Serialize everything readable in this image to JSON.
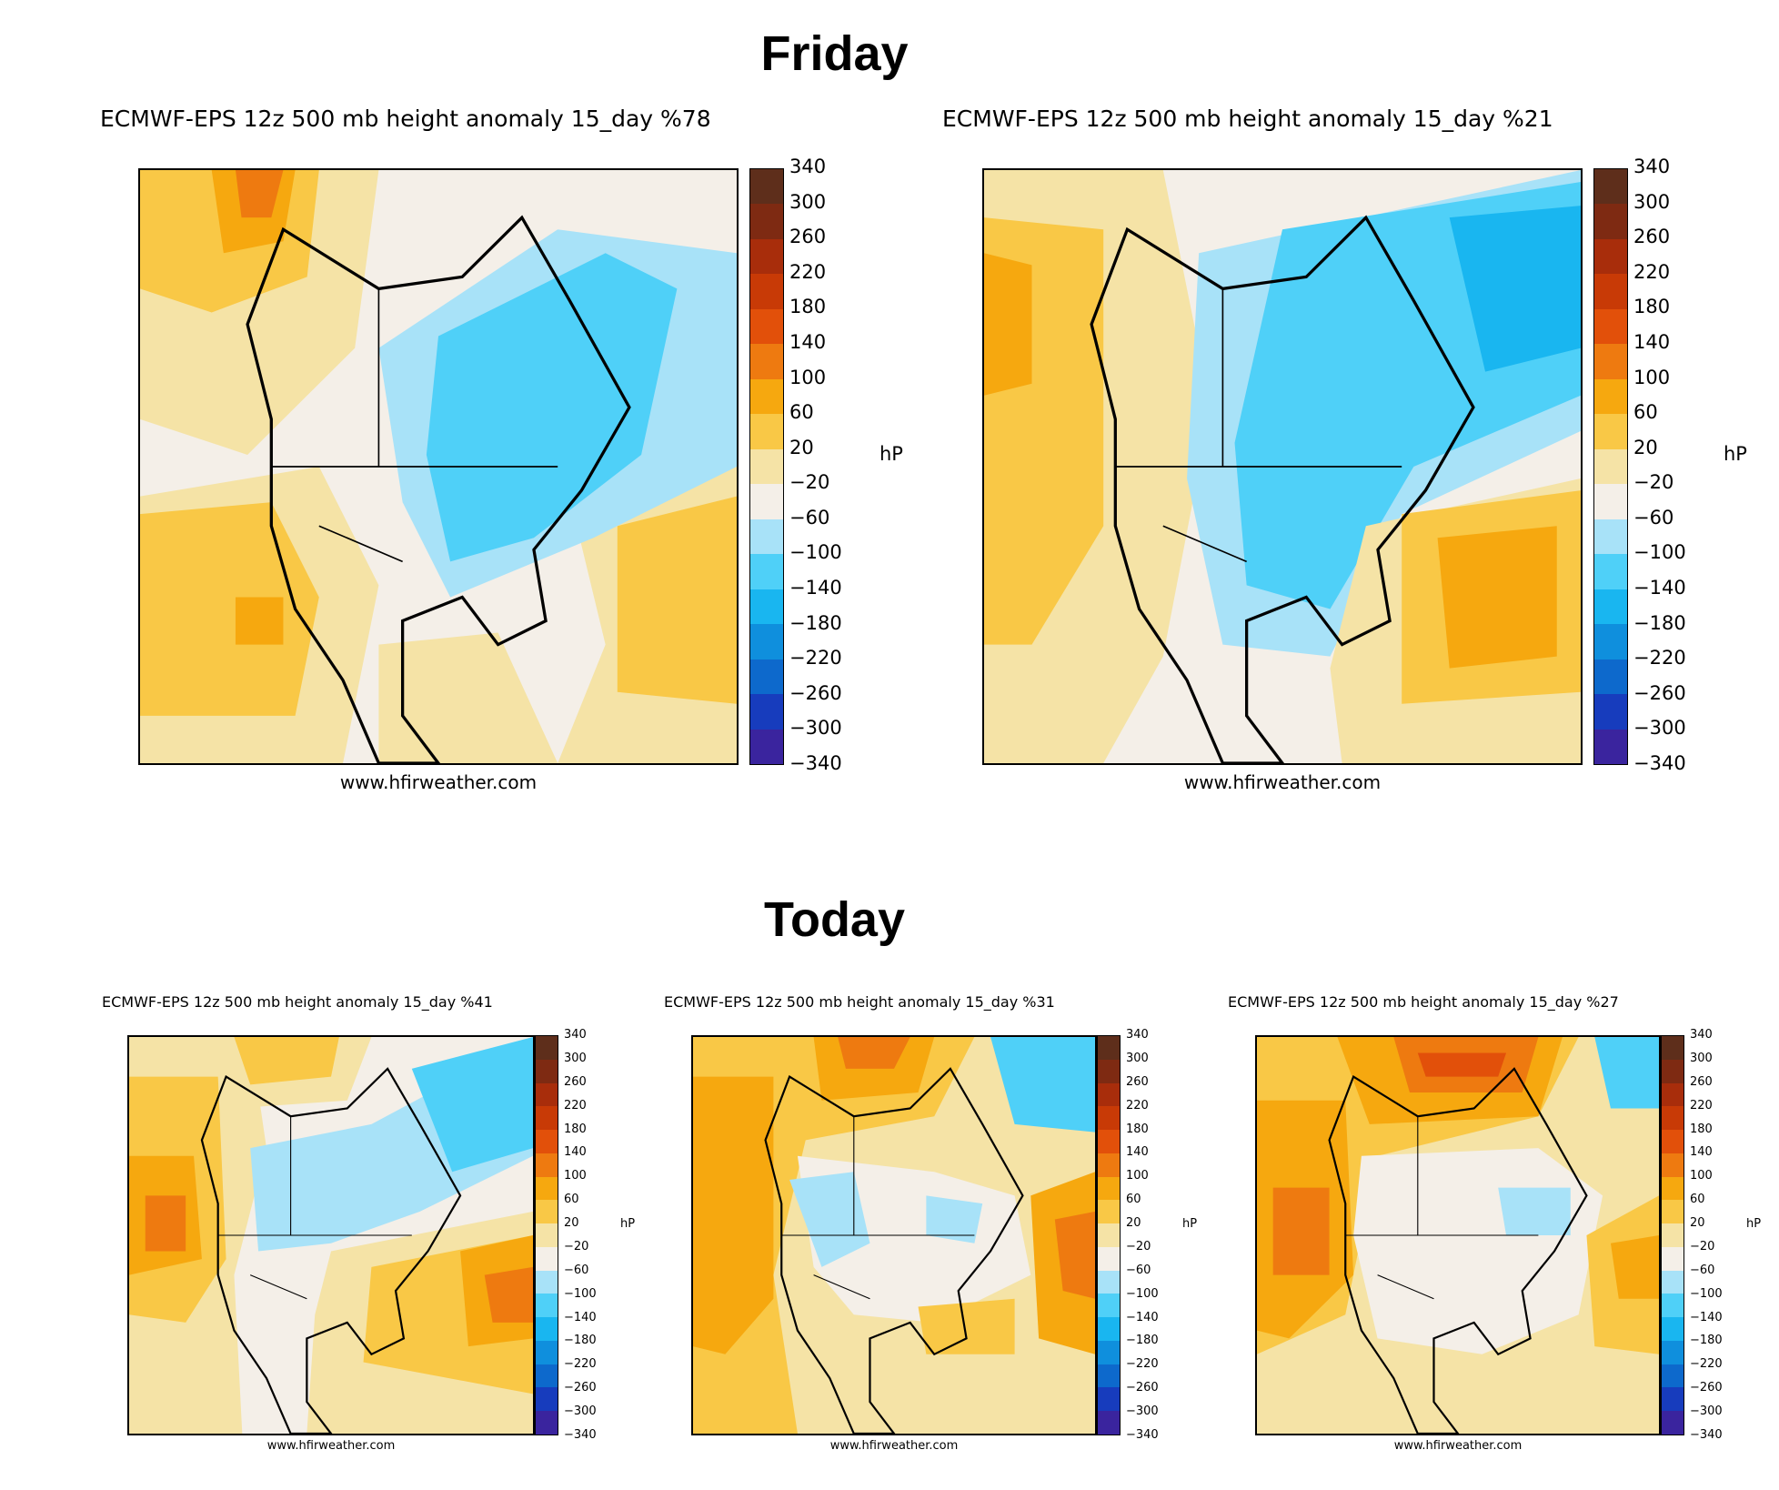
{
  "headings": {
    "friday": "Friday",
    "today": "Today"
  },
  "colorbar": {
    "ticks": [
      "340",
      "300",
      "260",
      "220",
      "180",
      "140",
      "100",
      "60",
      "20",
      "−20",
      "−60",
      "−100",
      "−140",
      "−180",
      "−220",
      "−260",
      "−300",
      "−340"
    ],
    "unit": "hP",
    "colors": [
      "#5e2e1b",
      "#7e2a12",
      "#a82d0b",
      "#c83a06",
      "#e2500a",
      "#ee7a10",
      "#f6a80f",
      "#f9c846",
      "#f5e3a6",
      "#f4efe8",
      "#a8e2f8",
      "#4fd0f8",
      "#19b6f0",
      "#0f8fdd",
      "#0d69cc",
      "#173cbd",
      "#3a249e",
      "#58188e",
      "#72168d"
    ]
  },
  "panels": [
    {
      "id": "friday-78",
      "title": "ECMWF-EPS 12z 500 mb height anomaly 15_day %78",
      "credit": "www.hfirweather.com"
    },
    {
      "id": "friday-21",
      "title": "ECMWF-EPS 12z 500 mb height anomaly 15_day %21",
      "credit": "www.hfirweather.com"
    },
    {
      "id": "today-41",
      "title": "ECMWF-EPS 12z 500 mb height anomaly 15_day %41",
      "credit": "www.hfirweather.com"
    },
    {
      "id": "today-31",
      "title": "ECMWF-EPS 12z 500 mb height anomaly 15_day %31",
      "credit": "www.hfirweather.com"
    },
    {
      "id": "today-27",
      "title": "ECMWF-EPS 12z 500 mb height anomaly 15_day %27",
      "credit": "www.hfirweather.com"
    }
  ],
  "palette": {
    "pos20": "#f5e3a6",
    "pos60": "#f9c846",
    "pos100": "#f6a80f",
    "pos140": "#ee7a10",
    "pos180": "#e2500a",
    "neutral": "#f4efe8",
    "neg20": "#a8e2f8",
    "neg60": "#4fd0f8",
    "neg100": "#19b6f0"
  }
}
